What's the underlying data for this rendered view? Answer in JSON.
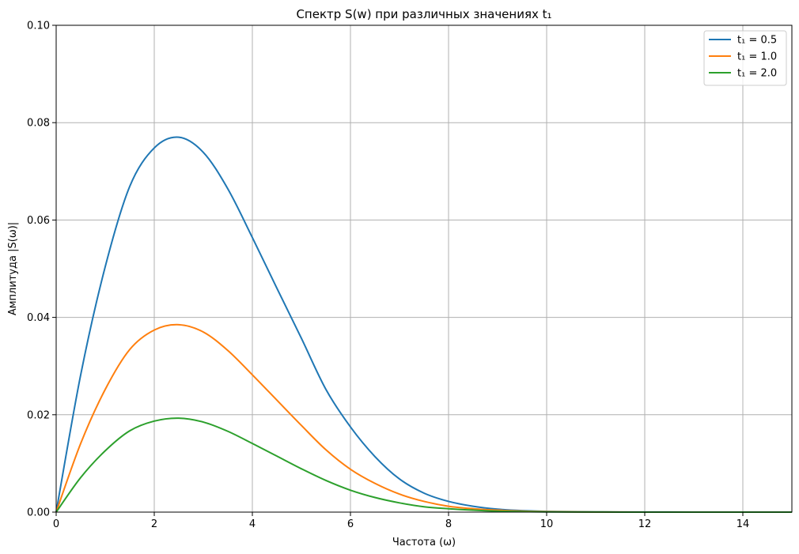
{
  "chart_data": {
    "type": "line",
    "title": "Спектр S(w) при различных значениях t₁",
    "xlabel": "Частота (ω)",
    "ylabel": "Амплитуда |S(ω)|",
    "xlim": [
      0,
      15
    ],
    "ylim": [
      0,
      0.1
    ],
    "x_ticks": [
      0,
      2,
      4,
      6,
      8,
      10,
      12,
      14
    ],
    "x_tick_labels": [
      "0",
      "2",
      "4",
      "6",
      "8",
      "10",
      "12",
      "14"
    ],
    "y_ticks": [
      0,
      0.02,
      0.04,
      0.06,
      0.08,
      0.1
    ],
    "y_tick_labels": [
      "0.00",
      "0.02",
      "0.04",
      "0.06",
      "0.08",
      "0.10"
    ],
    "grid": true,
    "legend_position": "top-right",
    "series": [
      {
        "name": "t₁ = 0.5",
        "color": "#1f77b4",
        "x": [
          0,
          0.5,
          1,
          1.5,
          2,
          2.5,
          3,
          3.5,
          4,
          4.5,
          5,
          5.5,
          6,
          6.5,
          7,
          7.5,
          8,
          8.5,
          9,
          9.5,
          10,
          11,
          12,
          13,
          14,
          15
        ],
        "values": [
          0,
          0.0282,
          0.0504,
          0.0669,
          0.0748,
          0.077,
          0.0739,
          0.0664,
          0.0564,
          0.046,
          0.0357,
          0.0252,
          0.0175,
          0.0114,
          0.0068,
          0.0039,
          0.0022,
          0.0012,
          0.0006,
          0.0003,
          0.00015,
          5e-05,
          2e-05,
          1e-05,
          0,
          0
        ]
      },
      {
        "name": "t₁ = 1.0",
        "color": "#ff7f0e",
        "x": [
          0,
          0.5,
          1,
          1.5,
          2,
          2.5,
          3,
          3.5,
          4,
          4.5,
          5,
          5.5,
          6,
          6.5,
          7,
          7.5,
          8,
          8.5,
          9,
          9.5,
          10,
          11,
          12,
          13,
          14,
          15
        ],
        "values": [
          0,
          0.0141,
          0.0252,
          0.0334,
          0.0374,
          0.0385,
          0.037,
          0.0332,
          0.0282,
          0.023,
          0.0178,
          0.0128,
          0.0088,
          0.0059,
          0.0037,
          0.0022,
          0.0012,
          0.0007,
          0.0004,
          0.0002,
          0.0001,
          3e-05,
          1e-05,
          0,
          0,
          0
        ]
      },
      {
        "name": "t₁ = 2.0",
        "color": "#2ca02c",
        "x": [
          0,
          0.5,
          1,
          1.5,
          2,
          2.5,
          3,
          3.5,
          4,
          4.5,
          5,
          5.5,
          6,
          6.5,
          7,
          7.5,
          8,
          8.5,
          9,
          9.5,
          10,
          11,
          12,
          13,
          14,
          15
        ],
        "values": [
          0,
          0.0071,
          0.0126,
          0.0167,
          0.0187,
          0.0193,
          0.0185,
          0.0166,
          0.0141,
          0.0115,
          0.0089,
          0.0065,
          0.0045,
          0.003,
          0.0019,
          0.0011,
          0.0007,
          0.0004,
          0.0002,
          0.0001,
          5e-05,
          2e-05,
          0,
          0,
          0,
          0
        ]
      }
    ]
  }
}
